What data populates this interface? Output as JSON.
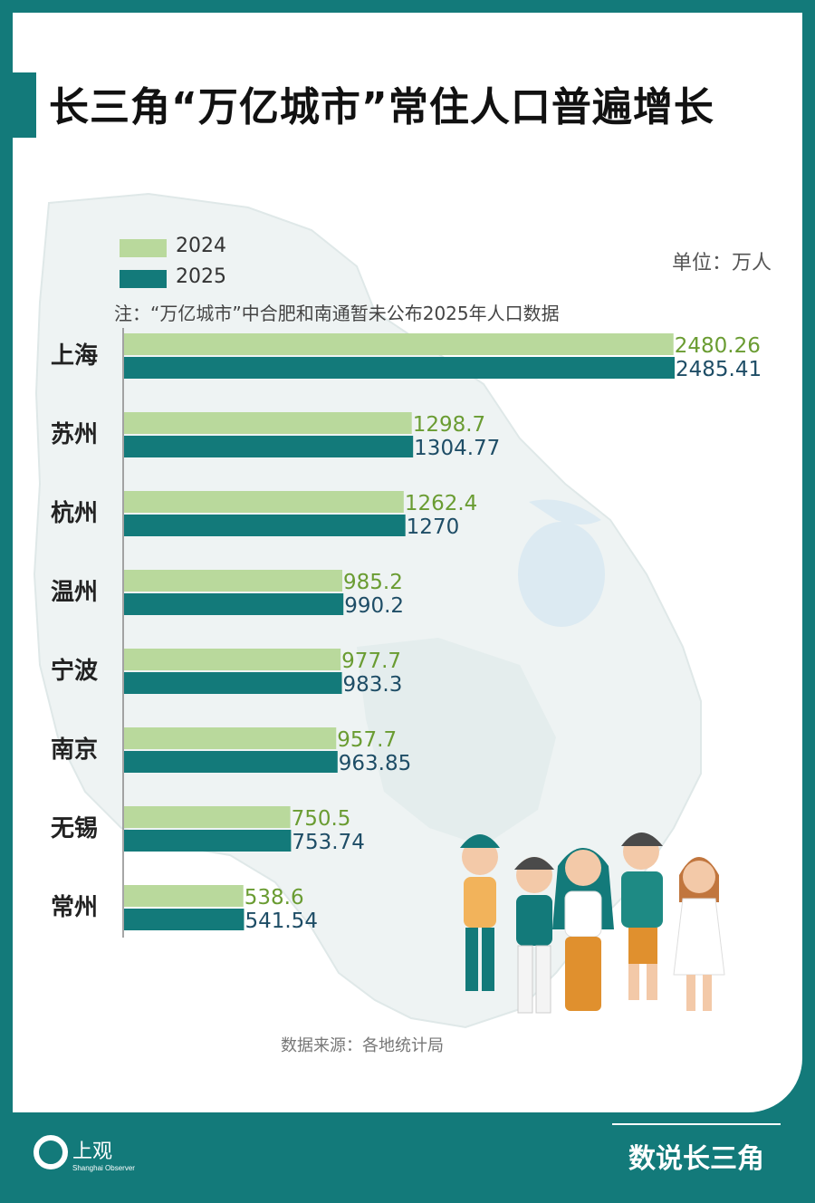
{
  "title": "长三角“万亿城市”常住人口普遍增长",
  "legend": {
    "series_2024": "2024",
    "series_2025": "2025"
  },
  "unit": "单位：万人",
  "note": "注：“万亿城市”中合肥和南通暂未公布2025年人口数据",
  "source": "数据来源：各地统计局",
  "footer": {
    "logo_text": "上观",
    "logo_subtext": "Shanghai Observer",
    "brand": "数说长三角"
  },
  "colors": {
    "accent": "#137a7a",
    "series_2024": "#b9d99c",
    "series_2025": "#137a7a",
    "label_2024": "#6a9c32",
    "label_2025": "#1e4d66"
  },
  "chart_data": {
    "type": "bar",
    "orientation": "horizontal",
    "title": "长三角“万亿城市”常住人口普遍增长",
    "unit": "单位：万人",
    "categories": [
      "上海",
      "苏州",
      "杭州",
      "温州",
      "宁波",
      "南京",
      "无锡",
      "常州"
    ],
    "series": [
      {
        "name": "2024",
        "values": [
          2480.26,
          1298.7,
          1262.4,
          985.2,
          977.7,
          957.7,
          750.5,
          538.6
        ]
      },
      {
        "name": "2025",
        "values": [
          2485.41,
          1304.77,
          1270,
          990.2,
          983.3,
          963.85,
          753.74,
          541.54
        ]
      }
    ],
    "value_labels_2024": [
      "2480.26",
      "1298.7",
      "1262.4",
      "985.2",
      "977.7",
      "957.7",
      "750.5",
      "538.6"
    ],
    "value_labels_2025": [
      "2485.41",
      "1304.77",
      "1270",
      "990.2",
      "983.3",
      "963.85",
      "753.74",
      "541.54"
    ],
    "xlim": [
      0,
      2485.41
    ],
    "grid": false,
    "legend": "top-left"
  }
}
